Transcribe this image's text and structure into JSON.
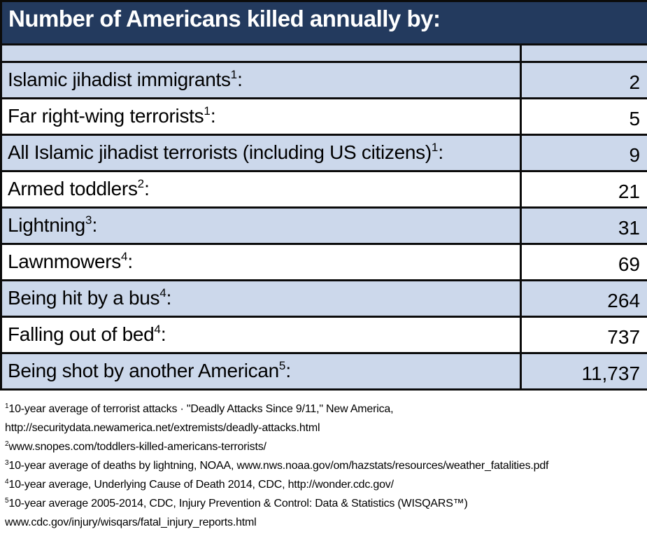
{
  "header": {
    "title": "Number of Americans killed annually by:"
  },
  "table": {
    "label_suffix": ":",
    "rows": [
      {
        "label": "Islamic jihadist immigrants",
        "sup": "1",
        "value": "2",
        "shade": "blue"
      },
      {
        "label": "Far right-wing terrorists",
        "sup": "1",
        "value": "5",
        "shade": "white"
      },
      {
        "label": "All Islamic jihadist terrorists (including US citizens)",
        "sup": "1",
        "value": "9",
        "shade": "blue"
      },
      {
        "label": "Armed toddlers",
        "sup": "2",
        "value": "21",
        "shade": "white"
      },
      {
        "label": "Lightning",
        "sup": "3",
        "value": "31",
        "shade": "blue"
      },
      {
        "label": "Lawnmowers",
        "sup": "4",
        "value": "69",
        "shade": "white"
      },
      {
        "label": "Being hit by a bus",
        "sup": "4",
        "value": "264",
        "shade": "blue"
      },
      {
        "label": "Falling out of bed",
        "sup": "4",
        "value": "737",
        "shade": "white"
      },
      {
        "label": "Being shot by another American",
        "sup": "5",
        "value": "11,737",
        "shade": "blue"
      }
    ]
  },
  "footnotes": [
    {
      "sup": "1",
      "lines": [
        "10-year average of terrorist attacks · \"Deadly Attacks Since 9/11,\" New America,",
        "http://securitydata.newamerica.net/extremists/deadly-attacks.html"
      ]
    },
    {
      "sup": "2",
      "lines": [
        "www.snopes.com/toddlers-killed-americans-terrorists/"
      ]
    },
    {
      "sup": "3",
      "lines": [
        "10-year average of deaths by lightning, NOAA, www.nws.noaa.gov/om/hazstats/resources/weather_fatalities.pdf"
      ]
    },
    {
      "sup": "4",
      "lines": [
        "10-year average, Underlying Cause of Death 2014, CDC, http://wonder.cdc.gov/"
      ]
    },
    {
      "sup": "5",
      "lines": [
        "10-year average 2005-2014, CDC, Injury Prevention & Control: Data & Statistics (WISQARS™)",
        "www.cdc.gov/injury/wisqars/fatal_injury_reports.html"
      ]
    }
  ],
  "colors": {
    "header_bg": "#233A5E",
    "header_text": "#FFFFFF",
    "row_blue": "#CCD8EB",
    "row_white": "#FFFFFF",
    "border": "#0B0B0B",
    "text": "#000000"
  },
  "chart_data": {
    "type": "table",
    "title": "Number of Americans killed annually by:",
    "categories": [
      "Islamic jihadist immigrants",
      "Far right-wing terrorists",
      "All Islamic jihadist terrorists (including US citizens)",
      "Armed toddlers",
      "Lightning",
      "Lawnmowers",
      "Being hit by a bus",
      "Falling out of bed",
      "Being shot by another American"
    ],
    "values": [
      2,
      5,
      9,
      21,
      31,
      69,
      264,
      737,
      11737
    ],
    "footnote_refs": [
      1,
      1,
      1,
      2,
      3,
      4,
      4,
      4,
      5
    ],
    "legend_position": "none",
    "grid": true
  }
}
